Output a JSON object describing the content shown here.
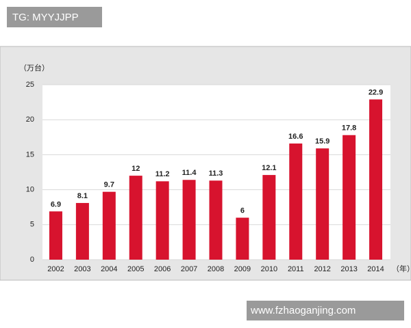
{
  "chart_data": {
    "type": "bar",
    "y_label": "（万台）",
    "x_label": "（年）",
    "categories": [
      "2002",
      "2003",
      "2004",
      "2005",
      "2006",
      "2007",
      "2008",
      "2009",
      "2010",
      "2011",
      "2012",
      "2013",
      "2014"
    ],
    "values": [
      6.9,
      8.1,
      9.7,
      12,
      11.2,
      11.4,
      11.3,
      6,
      12.1,
      16.6,
      15.9,
      17.8,
      22.9
    ],
    "color": "#d7132e",
    "ylim": [
      0,
      25
    ],
    "yticks": [
      0,
      5,
      10,
      15,
      20,
      25
    ],
    "grid": true
  },
  "overlays": {
    "top_left": "TG: MYYJJPP",
    "bottom_right": "www.fzhaoganjing.com"
  }
}
